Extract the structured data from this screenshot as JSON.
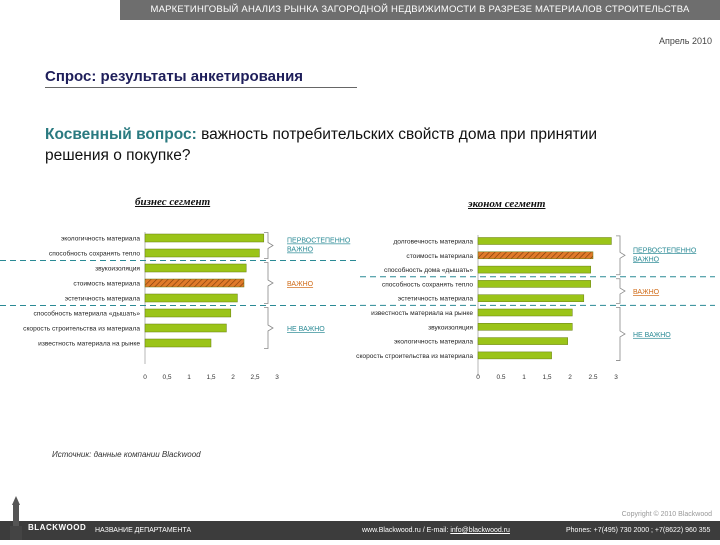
{
  "header": {
    "banner": "МАРКЕТИНГОВЫЙ АНАЛИЗ РЫНКА ЗАГОРОДНОЙ НЕДВИЖИМОСТИ В РАЗРЕЗЕ МАТЕРИАЛОВ СТРОИТЕЛЬСТВА",
    "date": "Апрель 2010"
  },
  "slide": {
    "title": "Спрос: результаты анкетирования",
    "question_label": "Косвенный вопрос:",
    "question_text": " важность потребительских свойств дома при принятии решения о покупке?"
  },
  "chart_data": [
    {
      "type": "bar",
      "orientation": "horizontal",
      "title": "бизнес сегмент",
      "categories": [
        "экологичность материала",
        "способность сохранять тепло",
        "звукоизоляция",
        "стоимость материала",
        "эстетичность материала",
        "способность материала «дышать»",
        "скорость строительства из материала",
        "известность материала на рынке"
      ],
      "values": [
        2.7,
        2.6,
        2.3,
        2.25,
        2.1,
        1.95,
        1.85,
        1.5
      ],
      "highlight_category": "стоимость материала",
      "xticks": [
        "0",
        "0,5",
        "1",
        "1,5",
        "2",
        "2,5",
        "3"
      ],
      "xlim": [
        0,
        3
      ],
      "groups": [
        {
          "label": "ПЕРВОСТЕПЕННО ВАЖНО",
          "from": 0,
          "to": 1
        },
        {
          "label": "ВАЖНО",
          "from": 2,
          "to": 4
        },
        {
          "label": "НЕ ВАЖНО",
          "from": 5,
          "to": 7
        }
      ]
    },
    {
      "type": "bar",
      "orientation": "horizontal",
      "title": "эконом сегмент",
      "categories": [
        "долговечность материала",
        "стоимость материала",
        "способность дома «дышать»",
        "способность сохранять тепло",
        "эстетичность материала",
        "известность материала на рынке",
        "звукоизоляция",
        "экологичность материала",
        "скорость строительства из материала"
      ],
      "values": [
        2.9,
        2.5,
        2.45,
        2.45,
        2.3,
        2.05,
        2.05,
        1.95,
        1.6
      ],
      "highlight_category": "стоимость материала",
      "xticks": [
        "0",
        "0.5",
        "1",
        "1,5",
        "2",
        "2.5",
        "3"
      ],
      "xlim": [
        0,
        3
      ],
      "groups": [
        {
          "label": "ПЕРВОСТЕПЕННО ВАЖНО",
          "from": 0,
          "to": 2
        },
        {
          "label": "ВАЖНО",
          "from": 3,
          "to": 4
        },
        {
          "label": "НЕ ВАЖНО",
          "from": 5,
          "to": 8
        }
      ]
    }
  ],
  "colors": {
    "bar": "#9bc418",
    "highlight": "#e07a2a",
    "group_important_first": "#2a8a95",
    "group_important": "#d06a16",
    "group_not_important": "#2a8a95",
    "dash_line": "#2a8a95"
  },
  "source": "Источник: данные компании Blackwood",
  "footer": {
    "department": "НАЗВАНИЕ ДЕПАРТАМЕНТА",
    "web": "www.Blackwood.ru  /  E-mail: ",
    "email": "info@blackwood.ru",
    "phones": "Phones: +7(495) 730 2000 ;  +7(8622) 960 355",
    "copyright": "Copyright © 2010 Blackwood",
    "logo_text": "BLACKWOOD"
  }
}
